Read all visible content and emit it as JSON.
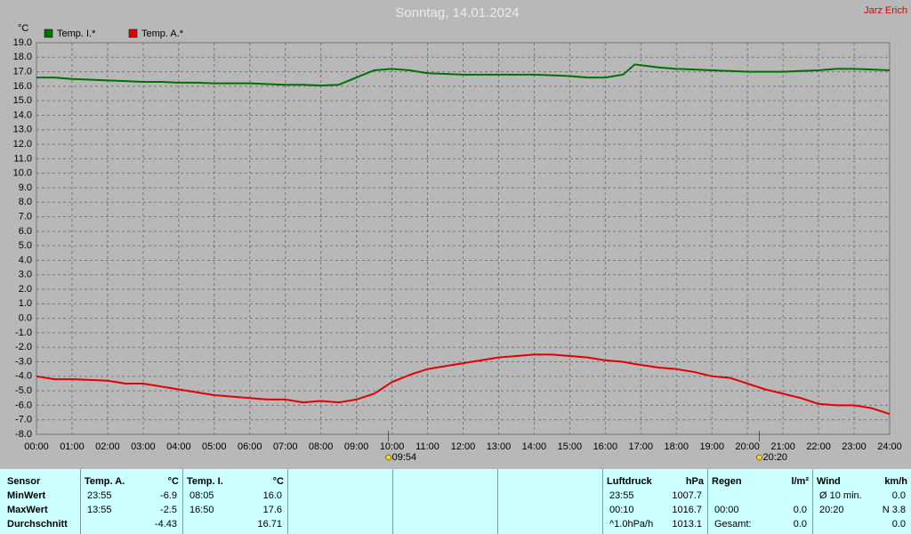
{
  "chart_data": {
    "type": "line",
    "title": "Sonntag, 14.01.2024",
    "corner_label": "Jarz Erich",
    "y_label": "°C",
    "x": [
      0,
      0.5,
      1,
      1.5,
      2,
      2.5,
      3,
      3.5,
      4,
      4.5,
      5,
      5.5,
      6,
      6.5,
      7,
      7.5,
      8,
      8.5,
      9,
      9.5,
      10,
      10.5,
      11,
      11.5,
      12,
      12.5,
      13,
      13.5,
      14,
      14.5,
      15,
      15.5,
      16,
      16.5,
      16.83,
      17.5,
      18,
      18.5,
      19,
      19.5,
      20,
      20.5,
      21,
      21.5,
      22,
      22.5,
      23,
      23.5,
      24
    ],
    "series": [
      {
        "name": "Temp. I.*",
        "color": "#007000",
        "values": [
          16.6,
          16.6,
          16.5,
          16.45,
          16.4,
          16.35,
          16.3,
          16.3,
          16.25,
          16.25,
          16.2,
          16.2,
          16.2,
          16.15,
          16.1,
          16.1,
          16.05,
          16.1,
          16.6,
          17.1,
          17.2,
          17.1,
          16.9,
          16.85,
          16.8,
          16.8,
          16.8,
          16.8,
          16.8,
          16.75,
          16.7,
          16.6,
          16.6,
          16.8,
          17.5,
          17.3,
          17.2,
          17.15,
          17.1,
          17.05,
          17.0,
          17.0,
          17.0,
          17.05,
          17.1,
          17.2,
          17.2,
          17.15,
          17.1
        ]
      },
      {
        "name": "Temp. A.*",
        "color": "#e00000",
        "values": [
          -4.0,
          -4.2,
          -4.2,
          -4.25,
          -4.3,
          -4.5,
          -4.5,
          -4.7,
          -4.9,
          -5.1,
          -5.3,
          -5.4,
          -5.5,
          -5.6,
          -5.6,
          -5.8,
          -5.7,
          -5.8,
          -5.6,
          -5.2,
          -4.4,
          -3.9,
          -3.5,
          -3.3,
          -3.1,
          -2.9,
          -2.7,
          -2.6,
          -2.5,
          -2.5,
          -2.6,
          -2.7,
          -2.9,
          -3.0,
          -3.15,
          -3.4,
          -3.5,
          -3.7,
          -4.0,
          -4.1,
          -4.5,
          -4.9,
          -5.2,
          -5.5,
          -5.9,
          -6.0,
          -6.0,
          -6.2,
          -6.6
        ]
      }
    ],
    "xlim": [
      0,
      24
    ],
    "xticks": [
      {
        "value": 0,
        "label": "00:00"
      },
      {
        "value": 1,
        "label": "01:00"
      },
      {
        "value": 2,
        "label": "02:00"
      },
      {
        "value": 3,
        "label": "03:00"
      },
      {
        "value": 4,
        "label": "04:00"
      },
      {
        "value": 5,
        "label": "05:00"
      },
      {
        "value": 6,
        "label": "06:00"
      },
      {
        "value": 7,
        "label": "07:00"
      },
      {
        "value": 8,
        "label": "08:00"
      },
      {
        "value": 9,
        "label": "09:00"
      },
      {
        "value": 10,
        "label": "10:00"
      },
      {
        "value": 11,
        "label": "11:00"
      },
      {
        "value": 12,
        "label": "12:00"
      },
      {
        "value": 13,
        "label": "13:00"
      },
      {
        "value": 14,
        "label": "14:00"
      },
      {
        "value": 15,
        "label": "15:00"
      },
      {
        "value": 16,
        "label": "16:00"
      },
      {
        "value": 17,
        "label": "17:00"
      },
      {
        "value": 18,
        "label": "18:00"
      },
      {
        "value": 19,
        "label": "19:00"
      },
      {
        "value": 20,
        "label": "20:00"
      },
      {
        "value": 21,
        "label": "21:00"
      },
      {
        "value": 22,
        "label": "22:00"
      },
      {
        "value": 23,
        "label": "23:00"
      },
      {
        "value": 24,
        "label": "24:00"
      }
    ],
    "ylim": [
      -8,
      19
    ],
    "yticks": [
      {
        "value": 19,
        "label": "19.0"
      },
      {
        "value": 18,
        "label": "18.0"
      },
      {
        "value": 17,
        "label": "17.0"
      },
      {
        "value": 16,
        "label": "16.0"
      },
      {
        "value": 15,
        "label": "15.0"
      },
      {
        "value": 14,
        "label": "14.0"
      },
      {
        "value": 13,
        "label": "13.0"
      },
      {
        "value": 12,
        "label": "12.0"
      },
      {
        "value": 11,
        "label": "11.0"
      },
      {
        "value": 10,
        "label": "10.0"
      },
      {
        "value": 9,
        "label": "9.0"
      },
      {
        "value": 8,
        "label": "8.0"
      },
      {
        "value": 7,
        "label": "7.0"
      },
      {
        "value": 6,
        "label": "6.0"
      },
      {
        "value": 5,
        "label": "5.0"
      },
      {
        "value": 4,
        "label": "4.0"
      },
      {
        "value": 3,
        "label": "3.0"
      },
      {
        "value": 2,
        "label": "2.0"
      },
      {
        "value": 1,
        "label": "1.0"
      },
      {
        "value": 0,
        "label": "0.0"
      },
      {
        "value": -1,
        "label": "-1.0"
      },
      {
        "value": -2,
        "label": "-2.0"
      },
      {
        "value": -3,
        "label": "-3.0"
      },
      {
        "value": -4,
        "label": "-4.0"
      },
      {
        "value": -5,
        "label": "-5.0"
      },
      {
        "value": -6,
        "label": "-6.0"
      },
      {
        "value": -7,
        "label": "-7.0"
      },
      {
        "value": -8,
        "label": "-8.0"
      }
    ],
    "grid": true,
    "annotations": [
      {
        "x": 9.9,
        "label": "09:54"
      },
      {
        "x": 20.333,
        "label": "20:20"
      }
    ]
  },
  "table": {
    "row_header": "Sensor",
    "row_labels": [
      "MinWert",
      "MaxWert",
      "Durchschnitt"
    ],
    "groups": [
      {
        "title": "Temp. A.",
        "unit": "°C",
        "cells": [
          {
            "left": "23:55",
            "right": "-6.9"
          },
          {
            "left": "13:55",
            "right": "-2.5"
          },
          {
            "right": "-4.43"
          }
        ]
      },
      {
        "title": "Temp. I.",
        "unit": "°C",
        "cells": [
          {
            "left": "08:05",
            "right": "16.0"
          },
          {
            "left": "16:50",
            "right": "17.6"
          },
          {
            "right": "16.71"
          }
        ]
      },
      {
        "title": "Luftdruck",
        "unit": "hPa",
        "cells": [
          {
            "left": "23:55",
            "right": "1007.7"
          },
          {
            "left": "00:10",
            "right": "1016.7"
          },
          {
            "left": "^1.0hPa/h",
            "right": "1013.1"
          }
        ]
      },
      {
        "title": "Regen",
        "unit": "l/m²",
        "cells": [
          {},
          {
            "left": "00:00",
            "right": "0.0"
          },
          {
            "left": "Gesamt:",
            "right": "0.0"
          }
        ]
      },
      {
        "title": "Wind",
        "unit": "km/h",
        "cells": [
          {
            "left": "Ø 10 min.",
            "right": "0.0"
          },
          {
            "left": "20:20",
            "right": "N 3.8"
          },
          {
            "right": "0.0"
          }
        ]
      }
    ]
  }
}
